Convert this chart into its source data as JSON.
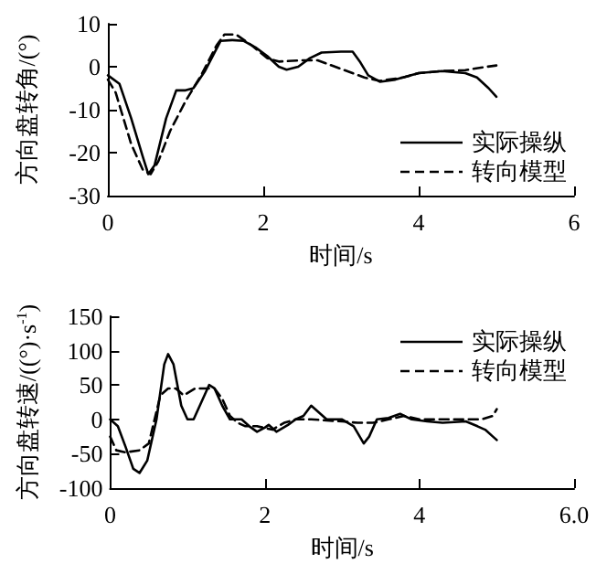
{
  "chart_data": [
    {
      "type": "line",
      "xlabel": "时间/s",
      "ylabel": "方向盘转角/(°)",
      "xlim": [
        0,
        6
      ],
      "xticks": [
        0,
        2,
        4,
        6
      ],
      "ylim": [
        -30,
        10
      ],
      "yticks": [
        -30,
        -20,
        -10,
        0,
        10
      ],
      "legend": "bottom right",
      "grid": false,
      "marker": "none",
      "series": [
        {
          "name": "实际操纵",
          "color": "#000000",
          "line_style": "solid",
          "x": [
            0,
            0.15,
            0.3,
            0.45,
            0.52,
            0.6,
            0.75,
            0.88,
            1.0,
            1.1,
            1.25,
            1.45,
            1.6,
            1.75,
            1.9,
            2.05,
            2.2,
            2.3,
            2.45,
            2.6,
            2.75,
            3.0,
            3.15,
            3.25,
            3.35,
            3.5,
            3.7,
            4.0,
            4.3,
            4.6,
            4.75,
            4.9,
            5.0
          ],
          "values": [
            -2,
            -4,
            -12,
            -21,
            -25,
            -23,
            -12,
            -5.5,
            -5.5,
            -5,
            -1,
            6,
            6.2,
            6,
            4.5,
            2.5,
            0,
            -0.7,
            0,
            2,
            3.3,
            3.5,
            3.5,
            1,
            -2,
            -3.5,
            -3,
            -1.5,
            -1,
            -1.5,
            -2.5,
            -5,
            -7
          ]
        },
        {
          "name": "转向模型",
          "color": "#000000",
          "line_style": "dashed",
          "x": [
            0,
            0.1,
            0.3,
            0.45,
            0.55,
            0.65,
            0.8,
            1.0,
            1.2,
            1.4,
            1.5,
            1.65,
            1.85,
            2.05,
            2.2,
            2.5,
            2.7,
            3.0,
            3.3,
            3.5,
            3.8,
            4.0,
            4.3,
            4.6,
            4.8,
            5.0
          ],
          "values": [
            -3,
            -6,
            -18,
            -24,
            -25,
            -22,
            -15,
            -8,
            -2,
            5,
            7.5,
            7.5,
            5,
            2,
            1.2,
            1.5,
            1.5,
            -0.5,
            -2.5,
            -3.3,
            -2.5,
            -1.5,
            -1,
            -0.8,
            -0.2,
            0.3
          ]
        }
      ]
    },
    {
      "type": "line",
      "xlabel": "时间/s",
      "ylabel": "方向盘转速/((°)·s$^{-1}$)",
      "xlim": [
        0,
        6
      ],
      "xticks": [
        0,
        2,
        4,
        {
          "value": 6,
          "label": "6.0"
        }
      ],
      "ylim": [
        -100,
        150
      ],
      "yticks": [
        -100,
        -50,
        0,
        50,
        100,
        150
      ],
      "legend": "top right",
      "grid": false,
      "marker": "none",
      "series": [
        {
          "name": "实际操纵",
          "color": "#000000",
          "line_style": "solid",
          "x": [
            0,
            0.1,
            0.2,
            0.3,
            0.38,
            0.48,
            0.6,
            0.7,
            0.75,
            0.82,
            0.92,
            1.0,
            1.08,
            1.18,
            1.28,
            1.35,
            1.45,
            1.55,
            1.7,
            1.8,
            1.9,
            2.0,
            2.05,
            2.15,
            2.3,
            2.4,
            2.5,
            2.6,
            2.7,
            2.8,
            3.0,
            3.15,
            3.28,
            3.35,
            3.45,
            3.6,
            3.75,
            3.9,
            4.1,
            4.3,
            4.6,
            4.75,
            4.85,
            4.95,
            5.0
          ],
          "values": [
            0,
            -10,
            -40,
            -72,
            -78,
            -60,
            0,
            80,
            95,
            80,
            20,
            0,
            0,
            25,
            50,
            45,
            20,
            0,
            0,
            -10,
            -18,
            -12,
            -8,
            -18,
            -8,
            0,
            5,
            20,
            10,
            0,
            0,
            -10,
            -35,
            -25,
            0,
            2,
            8,
            0,
            -3,
            -5,
            -3,
            -10,
            -15,
            -25,
            -30
          ]
        },
        {
          "name": "转向模型",
          "color": "#000000",
          "line_style": "dashed",
          "x": [
            0,
            0.08,
            0.2,
            0.38,
            0.5,
            0.65,
            0.75,
            0.85,
            0.95,
            1.1,
            1.25,
            1.35,
            1.45,
            1.55,
            1.65,
            1.75,
            1.9,
            2.1,
            2.25,
            2.4,
            2.6,
            3.0,
            3.2,
            3.4,
            3.6,
            3.8,
            4.0,
            4.3,
            4.6,
            4.8,
            4.95,
            5.0
          ],
          "values": [
            -25,
            -45,
            -48,
            -45,
            -35,
            35,
            45,
            45,
            35,
            45,
            45,
            45,
            30,
            5,
            -5,
            -10,
            -10,
            -15,
            -5,
            0,
            0,
            -3,
            -5,
            -5,
            0,
            5,
            0,
            0,
            0,
            0,
            5,
            15
          ]
        }
      ]
    }
  ]
}
